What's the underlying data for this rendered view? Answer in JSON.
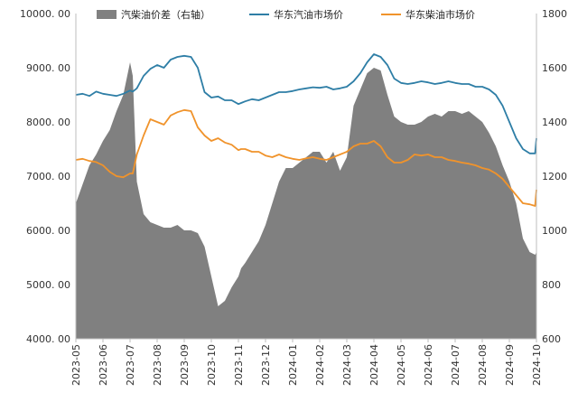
{
  "chart_data": {
    "type": "line",
    "title": "",
    "left_axis": {
      "ylim": [
        4000,
        10000
      ],
      "ticks": [
        4000,
        5000,
        6000,
        7000,
        8000,
        9000,
        10000
      ],
      "tick_labels": [
        "4000. 00",
        "5000. 00",
        "6000. 00",
        "7000. 00",
        "8000. 00",
        "9000. 00",
        "10000. 00"
      ]
    },
    "right_axis": {
      "ylim": [
        600,
        1800
      ],
      "ticks": [
        600,
        800,
        1000,
        1200,
        1400,
        1600,
        1800
      ],
      "tick_labels": [
        "600",
        "800",
        "1000",
        "1200",
        "1400",
        "1600",
        "1800"
      ]
    },
    "x_tick_labels": [
      "2023-05",
      "2023-06",
      "2023-07",
      "2023-08",
      "2023-09",
      "2023-10",
      "2023-11",
      "2023-12",
      "2024-01",
      "2024-02",
      "2024-03",
      "2024-04",
      "2024-05",
      "2024-06",
      "2024-07",
      "2024-08",
      "2024-09",
      "2024-10"
    ],
    "legend": [
      {
        "key": "spread",
        "label": "汽柴油价差（右轴）",
        "color": "#808080",
        "kind": "area"
      },
      {
        "key": "gasoline",
        "label": "华东汽油市场价",
        "color": "#2e7ea6",
        "kind": "line"
      },
      {
        "key": "diesel",
        "label": "华东柴油市场价",
        "color": "#f0932b",
        "kind": "line"
      }
    ],
    "x": [
      0,
      0.25,
      0.5,
      0.75,
      1,
      1.25,
      1.5,
      1.75,
      2,
      2.1,
      2.25,
      2.5,
      2.75,
      3,
      3.25,
      3.5,
      3.75,
      4,
      4.25,
      4.5,
      4.75,
      5,
      5.25,
      5.5,
      5.75,
      6,
      6.1,
      6.25,
      6.5,
      6.75,
      7,
      7.25,
      7.5,
      7.75,
      8,
      8.25,
      8.5,
      8.75,
      9,
      9.25,
      9.5,
      9.75,
      10,
      10.25,
      10.5,
      10.75,
      11,
      11.25,
      11.5,
      11.75,
      12,
      12.25,
      12.5,
      12.75,
      13,
      13.25,
      13.5,
      13.75,
      14,
      14.25,
      14.5,
      14.75,
      15,
      15.25,
      15.5,
      15.75,
      16,
      16.25,
      16.5,
      16.75,
      16.95,
      17
    ],
    "series": [
      {
        "key": "gasoline",
        "name": "华东汽油市场价",
        "axis": "left",
        "values": [
          8500,
          8520,
          8480,
          8560,
          8520,
          8500,
          8480,
          8520,
          8580,
          8560,
          8620,
          8850,
          8980,
          9050,
          9000,
          9150,
          9200,
          9220,
          9200,
          9000,
          8550,
          8450,
          8470,
          8400,
          8400,
          8330,
          8350,
          8380,
          8420,
          8400,
          8450,
          8500,
          8550,
          8550,
          8570,
          8600,
          8620,
          8640,
          8630,
          8650,
          8600,
          8620,
          8650,
          8750,
          8900,
          9100,
          9250,
          9200,
          9050,
          8800,
          8720,
          8700,
          8720,
          8750,
          8730,
          8700,
          8720,
          8750,
          8720,
          8700,
          8700,
          8650,
          8650,
          8600,
          8500,
          8300,
          8000,
          7700,
          7500,
          7420,
          7420,
          7700
        ]
      },
      {
        "key": "diesel",
        "name": "华东柴油市场价",
        "axis": "left",
        "values": [
          7300,
          7320,
          7280,
          7260,
          7200,
          7080,
          7000,
          6980,
          7050,
          7050,
          7400,
          7750,
          8050,
          8000,
          7950,
          8120,
          8180,
          8220,
          8200,
          7900,
          7750,
          7650,
          7700,
          7620,
          7580,
          7480,
          7500,
          7500,
          7450,
          7450,
          7380,
          7350,
          7400,
          7350,
          7320,
          7300,
          7330,
          7350,
          7320,
          7300,
          7350,
          7400,
          7450,
          7550,
          7600,
          7600,
          7650,
          7550,
          7350,
          7250,
          7250,
          7300,
          7400,
          7380,
          7400,
          7350,
          7350,
          7300,
          7280,
          7250,
          7230,
          7200,
          7150,
          7120,
          7050,
          6950,
          6800,
          6650,
          6500,
          6480,
          6450,
          6750
        ]
      },
      {
        "key": "spread",
        "name": "汽柴油价差（右轴）",
        "axis": "right",
        "values": [
          1100,
          1170,
          1240,
          1280,
          1330,
          1370,
          1440,
          1500,
          1620,
          1570,
          1180,
          1060,
          1030,
          1020,
          1010,
          1010,
          1020,
          1000,
          1000,
          990,
          940,
          830,
          720,
          740,
          790,
          830,
          860,
          880,
          920,
          960,
          1020,
          1100,
          1180,
          1230,
          1230,
          1250,
          1270,
          1290,
          1290,
          1250,
          1290,
          1220,
          1270,
          1460,
          1520,
          1580,
          1600,
          1590,
          1500,
          1420,
          1400,
          1390,
          1390,
          1400,
          1420,
          1430,
          1420,
          1440,
          1440,
          1430,
          1440,
          1420,
          1400,
          1360,
          1310,
          1240,
          1180,
          1100,
          970,
          920,
          910,
          920
        ]
      }
    ]
  }
}
